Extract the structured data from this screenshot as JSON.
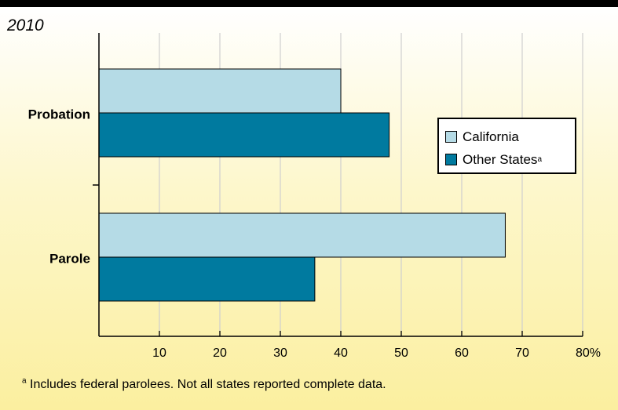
{
  "chart_data": {
    "type": "bar",
    "orientation": "horizontal",
    "title": "2010",
    "categories": [
      "Probation",
      "Parole"
    ],
    "series": [
      {
        "name": "California",
        "values": [
          40,
          67.2
        ]
      },
      {
        "name": "Other States",
        "superscript": "a",
        "values": [
          48,
          35.7
        ]
      }
    ],
    "x_ticks": [
      "10",
      "20",
      "30",
      "40",
      "50",
      "60",
      "70",
      "80%"
    ],
    "xlim": [
      0,
      80
    ],
    "grid": true,
    "legend_position": "right",
    "colors": {
      "California": "#b5dbe6",
      "Other States": "#007a9f"
    },
    "footnote": {
      "marker": "a",
      "text": "Includes federal parolees. Not all states reported complete data."
    }
  }
}
